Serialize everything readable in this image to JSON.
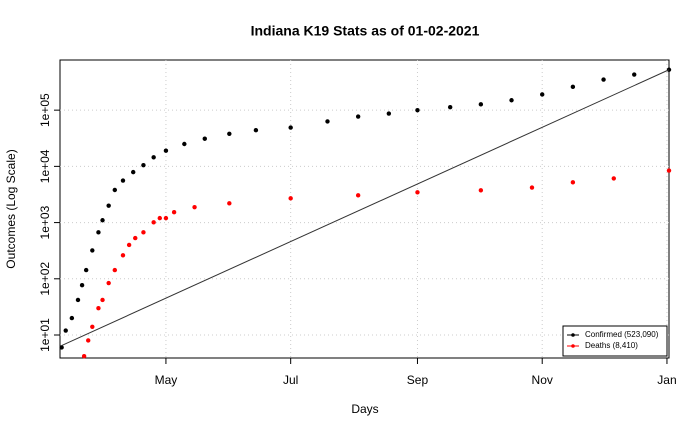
{
  "chart_data": {
    "type": "scatter",
    "title": "Indiana K19 Stats as of 01-02-2021",
    "x_label": "Days",
    "y_label": "Outcomes (Log Scale)",
    "log_y": true,
    "grid": true,
    "legend_position": "bottom-right",
    "xlim": [
      69.2,
      367
    ],
    "ylim": [
      3.9,
      780000
    ],
    "xticks": [
      {
        "value": 121,
        "label": "May"
      },
      {
        "value": 182,
        "label": "Jul"
      },
      {
        "value": 244,
        "label": "Sep"
      },
      {
        "value": 305,
        "label": "Nov"
      },
      {
        "value": 366,
        "label": "Jan"
      }
    ],
    "yticks": [
      {
        "value": 10,
        "label": "1e+01"
      },
      {
        "value": 100,
        "label": "1e+02"
      },
      {
        "value": 1000,
        "label": "1e+03"
      },
      {
        "value": 10000,
        "label": "1e+04"
      },
      {
        "value": 100000,
        "label": "1e+05"
      }
    ],
    "series": [
      {
        "name": "Confirmed (523,090)",
        "color": "#000000",
        "x": [
          70,
          72,
          75,
          78,
          80,
          82,
          85,
          88,
          90,
          93,
          96,
          100,
          105,
          110,
          115,
          121,
          130,
          140,
          152,
          165,
          182,
          200,
          215,
          230,
          244,
          260,
          275,
          290,
          305,
          320,
          335,
          350,
          367
        ],
        "values": [
          6,
          12,
          20,
          42,
          77,
          143,
          320,
          670,
          1100,
          2000,
          3800,
          5600,
          7900,
          10500,
          14500,
          19000,
          25000,
          31000,
          38000,
          44000,
          49000,
          63000,
          77000,
          87000,
          100000,
          113000,
          127000,
          150000,
          190000,
          260000,
          350000,
          430000,
          523090
        ]
      },
      {
        "name": "Deaths (8,410)",
        "color": "#ff0000",
        "x": [
          81,
          83,
          85,
          88,
          90,
          93,
          96,
          100,
          103,
          106,
          110,
          115,
          118,
          121,
          125,
          135,
          152,
          182,
          215,
          244,
          275,
          300,
          320,
          340,
          367
        ],
        "values": [
          4.2,
          8,
          14,
          30,
          42,
          84,
          143,
          262,
          400,
          530,
          670,
          1010,
          1200,
          1200,
          1530,
          1880,
          2200,
          2700,
          3050,
          3450,
          3750,
          4200,
          5200,
          6100,
          8410
        ]
      },
      {
        "color": "#333333",
        "x": [
          70,
          367
        ],
        "values": [
          6.5,
          523090
        ]
      }
    ]
  }
}
